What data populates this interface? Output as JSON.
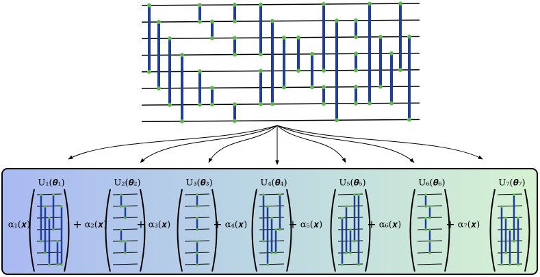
{
  "terms": [
    {
      "coefficient": "α₁(𝒙)",
      "unitary": "U₁(𝜽₁)"
    },
    {
      "coefficient": "α₂(𝒙)",
      "unitary": "U₂(𝜽₂)"
    },
    {
      "coefficient": "α₃(𝒙)",
      "unitary": "U₃(𝜽₃)"
    },
    {
      "coefficient": "α₄(𝒙)",
      "unitary": "U₄(𝜽₄)"
    },
    {
      "coefficient": "α₅(𝒙)",
      "unitary": "U₅(𝜽₅)"
    },
    {
      "coefficient": "α₆(𝒙)",
      "unitary": "U₆(𝜽₆)"
    },
    {
      "coefficient": "α₇(𝒙)",
      "unitary": "U₇(𝜽₇)"
    }
  ],
  "plus": "+"
}
